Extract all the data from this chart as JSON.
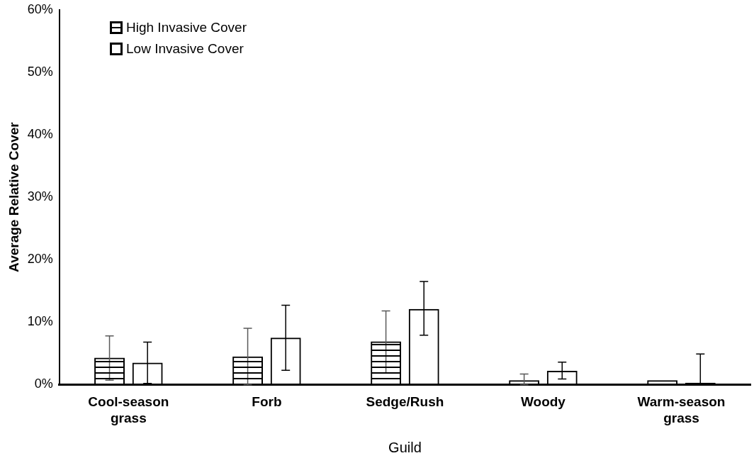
{
  "chart_data": {
    "type": "bar",
    "xlabel": "Guild",
    "ylabel": "Average Relative Cover",
    "categories": [
      "Cool-season grass",
      "Forb",
      "Sedge/Rush",
      "Woody",
      "Warm-season grass"
    ],
    "series": [
      {
        "name": "High Invasive Cover",
        "color": "#000000",
        "values": [
          4.3,
          4.5,
          6.9,
          0.7,
          0.7
        ],
        "errors": [
          [
            0.7,
            7.8
          ],
          [
            0,
            9.0
          ],
          [
            1.9,
            11.8
          ],
          [
            0,
            1.7
          ],
          null
        ]
      },
      {
        "name": "Low Invasive Cover",
        "color": "#000000",
        "values": [
          3.5,
          7.5,
          12.1,
          2.2,
          0.3
        ],
        "errors": [
          [
            0.2,
            6.8
          ],
          [
            2.3,
            12.7
          ],
          [
            7.9,
            16.5
          ],
          [
            0.9,
            3.6
          ],
          [
            0,
            4.9
          ]
        ]
      }
    ],
    "ylim": [
      0,
      60
    ],
    "yticks": [
      {
        "value": 0,
        "label": "0%"
      },
      {
        "value": 10,
        "label": "10%"
      },
      {
        "value": 20,
        "label": "20%"
      },
      {
        "value": 30,
        "label": "30%"
      },
      {
        "value": 40,
        "label": "40%"
      },
      {
        "value": 50,
        "label": "50%"
      },
      {
        "value": 60,
        "label": "60%"
      }
    ],
    "grid": false,
    "legend": "top left"
  }
}
